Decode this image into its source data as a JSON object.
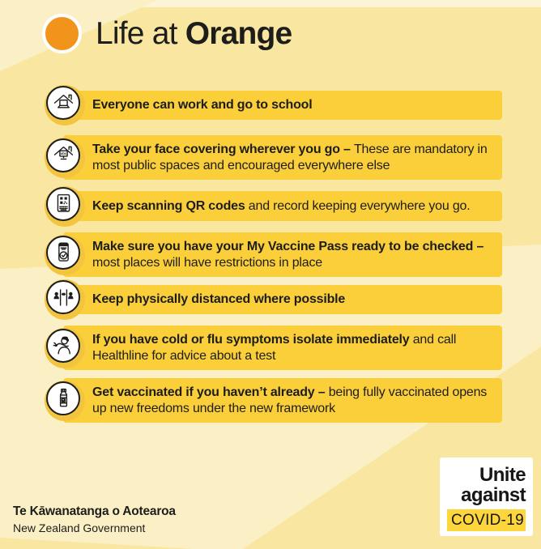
{
  "header": {
    "title_regular": "Life at ",
    "title_bold": "Orange"
  },
  "rows": [
    {
      "icon": "house-laptop-icon",
      "segments": [
        {
          "text": "Everyone can work and go to school",
          "bold": true
        }
      ]
    },
    {
      "icon": "house-school-icon",
      "segments": [
        {
          "text": "Take your face covering wherever you go – ",
          "bold": true
        },
        {
          "text": "These are mandatory in most public spaces and encouraged everywhere else",
          "bold": false
        }
      ]
    },
    {
      "icon": "qr-code-poster-icon",
      "segments": [
        {
          "text": "Keep scanning QR codes ",
          "bold": true
        },
        {
          "text": "and record keeping everywhere you go.",
          "bold": false
        }
      ]
    },
    {
      "icon": "vaccine-pass-icon",
      "segments": [
        {
          "text": "Make sure you have your My Vaccine Pass ready to be checked – ",
          "bold": true
        },
        {
          "text": "most places will have restrictions in place",
          "bold": false
        }
      ]
    },
    {
      "icon": "physical-distance-icon",
      "segments": [
        {
          "text": "Keep physically distanced where possible",
          "bold": true
        }
      ]
    },
    {
      "icon": "cough-elbow-icon",
      "segments": [
        {
          "text": "If you have cold or flu symptoms isolate immediately ",
          "bold": true
        },
        {
          "text": "and call Healthline for advice about a test",
          "bold": false
        }
      ]
    },
    {
      "icon": "vaccine-vial-icon",
      "segments": [
        {
          "text": "Get vaccinated if you haven’t already – ",
          "bold": true
        },
        {
          "text": "being fully vaccinated opens up new freedoms under the new framework",
          "bold": false
        }
      ]
    }
  ],
  "footer": {
    "maori_name": "Te Kāwanatanga o Aotearoa",
    "english_name": "New Zealand Government"
  },
  "badge": {
    "line1": "Unite",
    "line2": "against",
    "chip": "COVID-19"
  },
  "colors": {
    "background": "#F9E6A1",
    "background_light": "#FBF0C5",
    "background_lighter": "#FCF4D6",
    "bar": "#FBCF3A",
    "icon_ring": "#F3C53F",
    "accent_orange": "#F2941C",
    "text": "#1D1D1B",
    "badge_chip": "#FDD63B"
  }
}
